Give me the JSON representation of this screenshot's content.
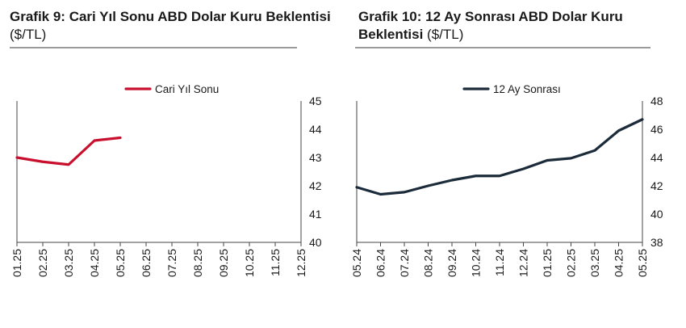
{
  "charts": {
    "left": {
      "title_bold": "Grafik 9: Cari Yıl Sonu ABD Dolar Kuru Beklentisi",
      "title_unit": "($/TL)"
    },
    "right": {
      "title_bold": "Grafik 10: 12 Ay Sonrası ABD Dolar Kuru Beklentisi",
      "title_unit": "($/TL)"
    }
  },
  "chart_data": [
    {
      "type": "line",
      "title": "Grafik 9: Cari Yıl Sonu ABD Dolar Kuru Beklentisi ($/TL)",
      "x": [
        "01.25",
        "02.25",
        "03.25",
        "04.25",
        "05.25",
        "06.25",
        "07.25",
        "08.25",
        "09.25",
        "10.25",
        "11.25",
        "12.25"
      ],
      "series": [
        {
          "name": "Cari Yıl Sonu",
          "color": "#c8102e",
          "values": [
            43.0,
            42.85,
            42.75,
            43.6,
            43.7,
            null,
            null,
            null,
            null,
            null,
            null,
            null
          ]
        }
      ],
      "ylim": [
        40,
        45
      ],
      "yticks": [
        40,
        41,
        42,
        43,
        44,
        45
      ],
      "y_axis_side": "right",
      "legend": "top-center",
      "grid": false
    },
    {
      "type": "line",
      "title": "Grafik 10: 12 Ay Sonrası ABD Dolar Kuru Beklentisi ($/TL)",
      "x": [
        "05.24",
        "06.24",
        "07.24",
        "08.24",
        "09.24",
        "10.24",
        "11.24",
        "12.24",
        "01.25",
        "02.25",
        "03.25",
        "04.25",
        "05.25"
      ],
      "series": [
        {
          "name": "12 Ay Sonrası",
          "color": "#1c2b39",
          "values": [
            41.9,
            41.4,
            41.55,
            42.0,
            42.4,
            42.7,
            42.7,
            43.2,
            43.8,
            43.95,
            44.5,
            45.9,
            46.7
          ]
        }
      ],
      "ylim": [
        38,
        48
      ],
      "yticks": [
        38,
        40,
        42,
        44,
        46,
        48
      ],
      "y_axis_side": "right",
      "legend": "top-center",
      "grid": false
    }
  ]
}
